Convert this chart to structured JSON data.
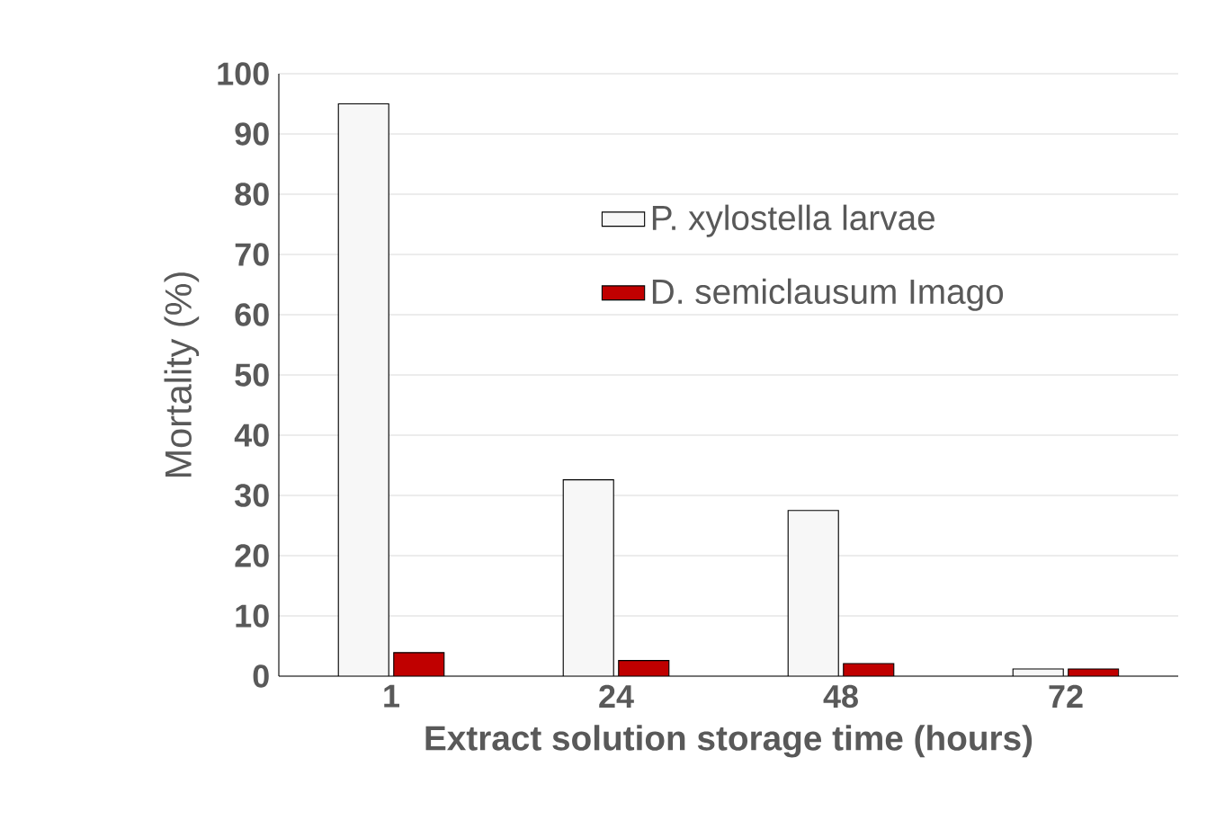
{
  "chart_data": {
    "type": "bar",
    "xlabel": "Extract solution storage time (hours)",
    "ylabel": "Mortality (%)",
    "categories": [
      "1",
      "24",
      "48",
      "72"
    ],
    "series": [
      {
        "name": "P. xylostella larvae",
        "color": "#f7f7f7",
        "values": [
          95,
          32.6,
          27.5,
          1.2
        ]
      },
      {
        "name": "D. semiclausum Imago",
        "color": "#c00000",
        "values": [
          3.9,
          2.6,
          2.1,
          1.2
        ]
      }
    ],
    "ylim": [
      0,
      100
    ],
    "yticks": [
      0,
      10,
      20,
      30,
      40,
      50,
      60,
      70,
      80,
      90,
      100
    ],
    "grid": "y",
    "legend": "top right"
  }
}
